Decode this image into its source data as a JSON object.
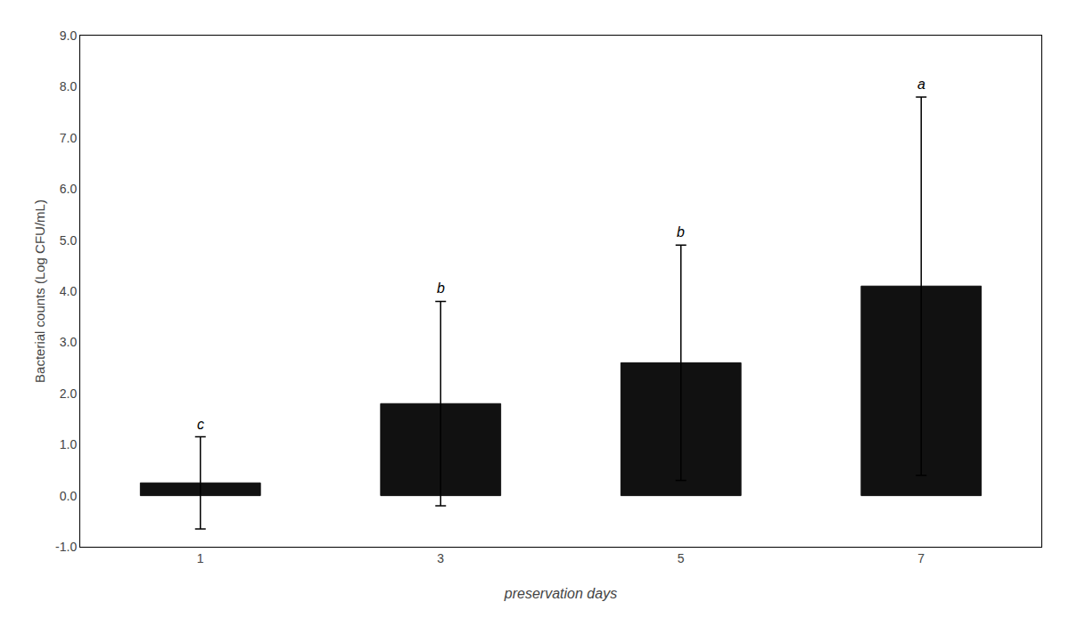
{
  "chart_data": {
    "type": "bar",
    "categories": [
      "1",
      "3",
      "5",
      "7"
    ],
    "values": [
      0.25,
      1.8,
      2.6,
      4.1
    ],
    "errors": [
      0.9,
      2.0,
      2.3,
      3.7
    ],
    "annotations": [
      "c",
      "b",
      "b",
      "a"
    ],
    "color": "#111111",
    "xlabel": "preservation days",
    "ylabel": "Bacterial counts (Log CFU/mL)",
    "ylim": [
      -1.0,
      9.0
    ],
    "yticks": [
      {
        "value": -1.0,
        "label": "-1.0"
      },
      {
        "value": 0.0,
        "label": "0.0"
      },
      {
        "value": 1.0,
        "label": "1.0"
      },
      {
        "value": 2.0,
        "label": "2.0"
      },
      {
        "value": 3.0,
        "label": "3.0"
      },
      {
        "value": 4.0,
        "label": "4.0"
      },
      {
        "value": 5.0,
        "label": "5.0"
      },
      {
        "value": 6.0,
        "label": "6.0"
      },
      {
        "value": 7.0,
        "label": "7.0"
      },
      {
        "value": 8.0,
        "label": "8.0"
      },
      {
        "value": 9.0,
        "label": "9.0"
      }
    ],
    "grid": false
  }
}
